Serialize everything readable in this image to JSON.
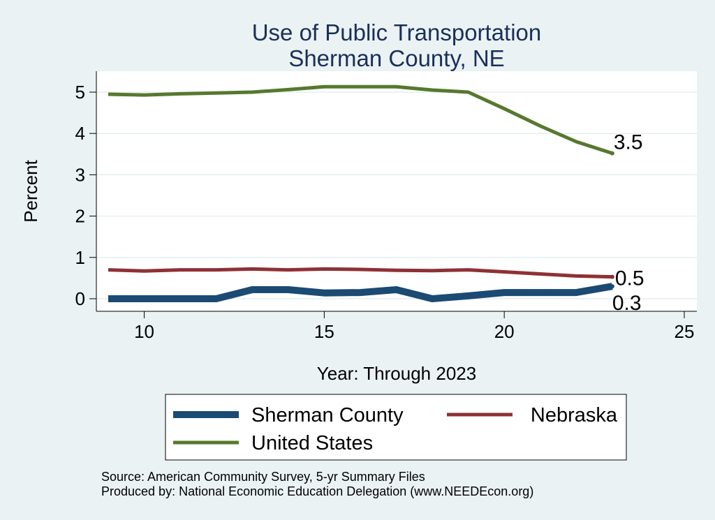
{
  "chart_data": {
    "type": "line",
    "title": [
      "Use of Public Transportation",
      "Sherman County, NE"
    ],
    "xlabel": "Year: Through 2023",
    "ylabel": "Percent",
    "xlim": [
      9,
      25
    ],
    "ylim": [
      0,
      5.2
    ],
    "xticks": [
      10,
      15,
      20,
      25
    ],
    "yticks": [
      0,
      1,
      2,
      3,
      4,
      5
    ],
    "grid": true,
    "legend_position": "bottom",
    "series": [
      {
        "name": "Sherman County",
        "color": "#1b4a73",
        "width": 10,
        "x": [
          9,
          10,
          11,
          12,
          13,
          14,
          15,
          16,
          17,
          18,
          19,
          20,
          21,
          22,
          23
        ],
        "y": [
          0,
          0,
          0,
          0,
          0.22,
          0.22,
          0.14,
          0.15,
          0.22,
          0,
          0.07,
          0.15,
          0.15,
          0.15,
          0.3
        ],
        "end_label": "0.3"
      },
      {
        "name": "Nebraska",
        "color": "#8e3135",
        "width": 5,
        "x": [
          9,
          10,
          11,
          12,
          13,
          14,
          15,
          16,
          17,
          18,
          19,
          20,
          21,
          22,
          23
        ],
        "y": [
          0.7,
          0.67,
          0.7,
          0.7,
          0.72,
          0.7,
          0.72,
          0.71,
          0.69,
          0.68,
          0.7,
          0.65,
          0.6,
          0.55,
          0.53
        ],
        "end_label": "0.5"
      },
      {
        "name": "United States",
        "color": "#56792e",
        "width": 5,
        "x": [
          9,
          10,
          11,
          12,
          13,
          14,
          15,
          16,
          17,
          18,
          19,
          20,
          21,
          22,
          23
        ],
        "y": [
          4.95,
          4.93,
          4.96,
          4.98,
          5.0,
          5.06,
          5.13,
          5.13,
          5.13,
          5.05,
          5.0,
          4.6,
          4.18,
          3.8,
          3.52
        ],
        "end_label": "3.5"
      }
    ]
  },
  "footer": {
    "source": "Source: American Community Survey, 5-yr Summary Files",
    "produced_by": "Produced by: National Economic Education Delegation (www.NEEDEcon.org)"
  }
}
